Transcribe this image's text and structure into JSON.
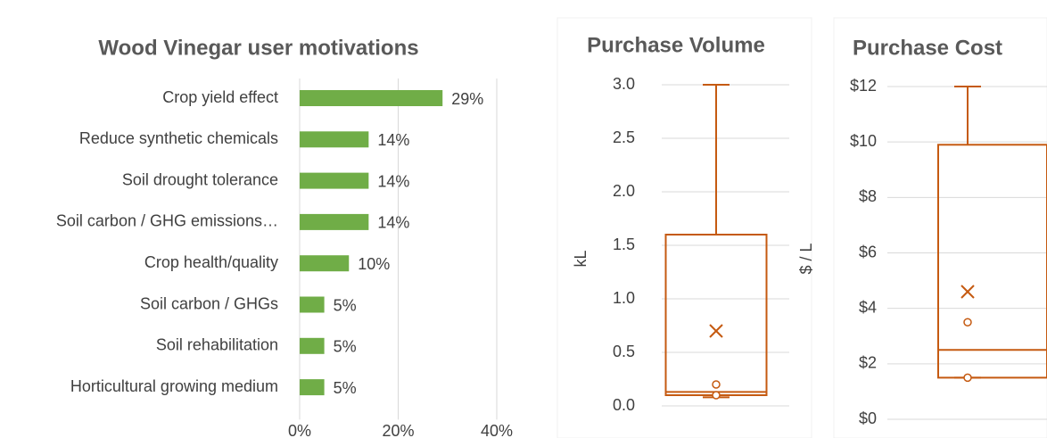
{
  "chart_data": [
    {
      "type": "bar",
      "orientation": "horizontal",
      "title": "Wood Vinegar user motivations",
      "categories": [
        "Crop yield effect",
        "Reduce synthetic chemicals",
        "Soil drought tolerance",
        "Soil carbon / GHG emissions…",
        "Crop health/quality",
        "Soil carbon / GHGs",
        "Soil rehabilitation",
        "Horticultural growing medium"
      ],
      "values": [
        29,
        14,
        14,
        14,
        10,
        5,
        5,
        5
      ],
      "value_labels": [
        "29%",
        "14%",
        "14%",
        "14%",
        "10%",
        "5%",
        "5%",
        "5%"
      ],
      "color": "#70ad47",
      "xlim": [
        0,
        40
      ],
      "xticks": [
        {
          "value": 0,
          "label": "0%"
        },
        {
          "value": 20,
          "label": "20%"
        },
        {
          "value": 40,
          "label": "40%"
        }
      ],
      "grid": true
    },
    {
      "type": "box",
      "title": "Purchase Volume",
      "ylabel": "kL",
      "color": "#c55a11",
      "min": 0.08,
      "q1": 0.1,
      "median": 0.13,
      "q3": 1.6,
      "max": 3.0,
      "mean": 0.7,
      "outliers": [
        0.2,
        0.1
      ],
      "ylim": [
        0,
        3
      ],
      "yticks": [
        {
          "value": 0,
          "label": "0.0"
        },
        {
          "value": 0.5,
          "label": "0.5"
        },
        {
          "value": 1,
          "label": "1.0"
        },
        {
          "value": 1.5,
          "label": "1.5"
        },
        {
          "value": 2,
          "label": "2.0"
        },
        {
          "value": 2.5,
          "label": "2.5"
        },
        {
          "value": 3,
          "label": "3.0"
        }
      ],
      "grid": true
    },
    {
      "type": "box",
      "title": "Purchase Cost",
      "ylabel": "$ / L",
      "color": "#c55a11",
      "min": 1.5,
      "q1": 1.5,
      "median": 2.5,
      "q3": 9.9,
      "max": 12,
      "mean": 4.6,
      "outliers": [
        3.5,
        1.5
      ],
      "ylim": [
        0,
        12
      ],
      "yticks": [
        {
          "value": 0,
          "label": "$0"
        },
        {
          "value": 2,
          "label": "$2"
        },
        {
          "value": 4,
          "label": "$4"
        },
        {
          "value": 6,
          "label": "$6"
        },
        {
          "value": 8,
          "label": "$8"
        },
        {
          "value": 10,
          "label": "$10"
        },
        {
          "value": 12,
          "label": "$12"
        }
      ],
      "grid": true
    }
  ]
}
